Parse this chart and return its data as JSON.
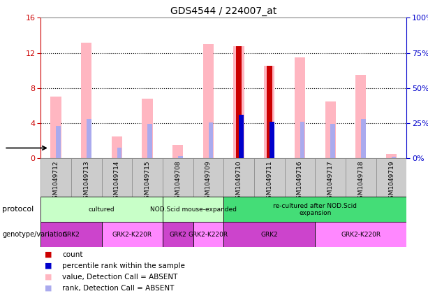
{
  "title": "GDS4544 / 224007_at",
  "samples": [
    "GSM1049712",
    "GSM1049713",
    "GSM1049714",
    "GSM1049715",
    "GSM1049708",
    "GSM1049709",
    "GSM1049710",
    "GSM1049711",
    "GSM1049716",
    "GSM1049717",
    "GSM1049718",
    "GSM1049719"
  ],
  "pink_values": [
    7.0,
    13.2,
    2.5,
    6.8,
    1.5,
    13.0,
    12.8,
    10.5,
    11.5,
    6.5,
    9.5,
    0.5
  ],
  "light_blue_rank": [
    3.7,
    4.5,
    1.2,
    3.9,
    0.3,
    4.1,
    5.0,
    4.2,
    4.2,
    3.9,
    4.5,
    0.2
  ],
  "red_count": [
    0,
    0,
    0,
    0,
    0,
    0,
    12.8,
    10.5,
    0,
    0,
    0,
    0
  ],
  "blue_rank": [
    0,
    0,
    0,
    0,
    0,
    0,
    5.0,
    4.2,
    0,
    0,
    0,
    0
  ],
  "ylim_left": [
    0,
    16
  ],
  "yticks_left": [
    0,
    4,
    8,
    12,
    16
  ],
  "yticks_right": [
    0,
    25,
    50,
    75,
    100
  ],
  "ytick_labels_right": [
    "0%",
    "25%",
    "50%",
    "75%",
    "100%"
  ],
  "protocol_data": [
    {
      "label": "cultured",
      "xstart": 0,
      "xend": 4,
      "color": "#c8ffc8"
    },
    {
      "label": "NOD.Scid mouse-expanded",
      "xstart": 4,
      "xend": 6,
      "color": "#c8ffc8"
    },
    {
      "label": "re-cultured after NOD.Scid\nexpansion",
      "xstart": 6,
      "xend": 12,
      "color": "#44dd77"
    }
  ],
  "genotype_data": [
    {
      "label": "GRK2",
      "xstart": 0,
      "xend": 2,
      "color": "#cc44cc"
    },
    {
      "label": "GRK2-K220R",
      "xstart": 2,
      "xend": 4,
      "color": "#ff88ff"
    },
    {
      "label": "GRK2",
      "xstart": 4,
      "xend": 5,
      "color": "#cc44cc"
    },
    {
      "label": "GRK2-K220R",
      "xstart": 5,
      "xend": 6,
      "color": "#ff88ff"
    },
    {
      "label": "GRK2",
      "xstart": 6,
      "xend": 9,
      "color": "#cc44cc"
    },
    {
      "label": "GRK2-K220R",
      "xstart": 9,
      "xend": 12,
      "color": "#ff88ff"
    }
  ],
  "pink_color": "#FFB6C1",
  "red_color": "#CC0000",
  "blue_color": "#0000CC",
  "light_blue_color": "#AAAAEE",
  "axis_left_color": "#CC0000",
  "axis_right_color": "#0000CC",
  "tick_bg_color": "#cccccc",
  "tick_border_color": "#888888"
}
